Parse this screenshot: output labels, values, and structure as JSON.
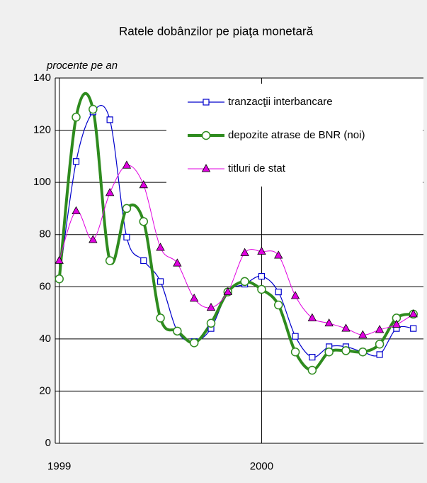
{
  "chart_data": {
    "type": "line",
    "title": "Ratele dobânzilor pe piaţa monetară",
    "y_label": "procente pe an",
    "x": [
      1999,
      1999.0833,
      1999.1667,
      1999.25,
      1999.3333,
      1999.4167,
      1999.5,
      1999.5833,
      1999.6667,
      1999.75,
      1999.8333,
      1999.9167,
      2000,
      2000.0833,
      2000.1667,
      2000.25,
      2000.3333,
      2000.4167,
      2000.5,
      2000.5833,
      2000.6667,
      2000.75
    ],
    "series": [
      {
        "name": "tranzacţii interbancare",
        "color": "#0000cc",
        "marker": "square",
        "values": [
          63,
          108,
          127,
          124,
          79,
          70,
          62,
          43,
          39,
          44,
          58,
          61,
          64,
          58,
          41,
          33,
          37,
          37,
          35,
          34,
          44,
          44
        ]
      },
      {
        "name": "depozite atrase de BNR (noi)",
        "color": "#2e8b1e",
        "marker": "circle",
        "values": [
          63,
          125,
          128,
          70,
          90,
          85,
          48,
          43,
          38.5,
          46,
          58,
          62,
          59,
          53,
          35,
          28,
          35,
          35.5,
          35,
          38,
          48,
          49.5
        ]
      },
      {
        "name": "titluri de stat",
        "color": "#e000e0",
        "marker": "triangle",
        "values": [
          70,
          89,
          78,
          96,
          106.5,
          99,
          75,
          69,
          55.5,
          52,
          58,
          73,
          73.5,
          72,
          56.5,
          48,
          46,
          44,
          41.5,
          43.5,
          45.5,
          49.5
        ]
      }
    ],
    "xlim": [
      1998.98,
      2000.8
    ],
    "xticks": [
      1999,
      2000
    ],
    "ylim": [
      0,
      140
    ],
    "yticks": [
      0,
      20,
      40,
      60,
      80,
      100,
      120,
      140
    ],
    "grid": true,
    "legend": "top-right"
  }
}
